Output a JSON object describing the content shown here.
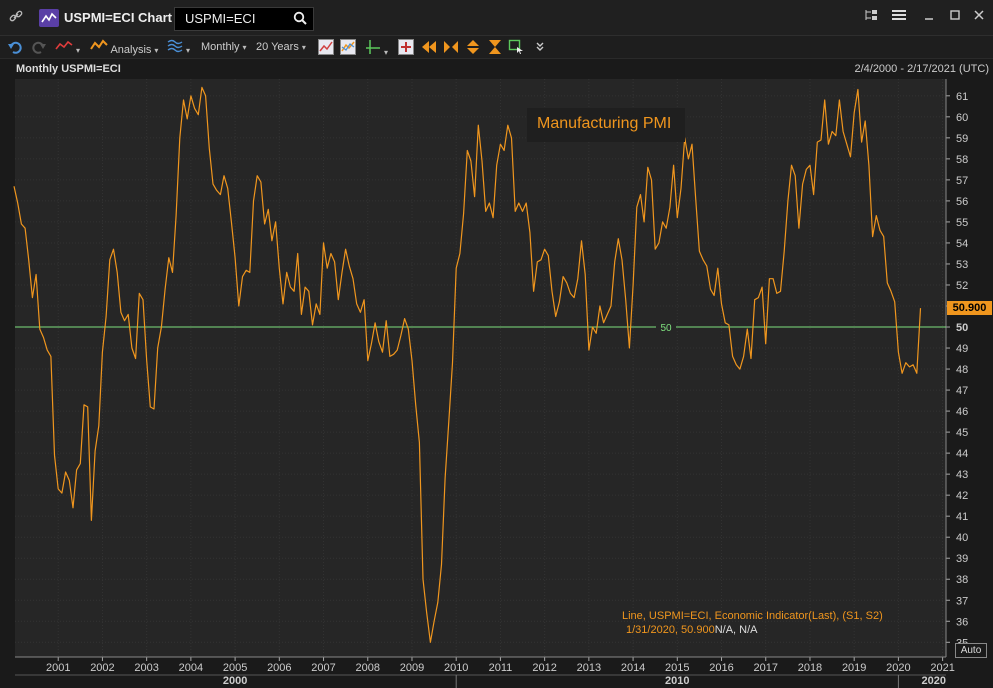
{
  "window": {
    "title": "USPMI=ECI Chart",
    "search_value": "USPMI=ECI"
  },
  "toolbar": {
    "analysis_label": "Analysis",
    "interval_label": "Monthly",
    "period_label": "20 Years"
  },
  "chart_header": {
    "title": "Monthly USPMI=ECI",
    "range": "2/4/2000 - 2/17/2021 (UTC)"
  },
  "annotation": "Manufacturing PMI",
  "legend": {
    "line1": "Line, USPMI=ECI, Economic Indicator(Last), (S1, S2)",
    "line2_value": "1/31/2020, 50.900",
    "line2_na": "N/A, N/A"
  },
  "last_value_badge": "50.900",
  "auto_button": "Auto",
  "colors": {
    "series": "#f0961e",
    "reference_line": "#7fe07f",
    "background": "#1a1a1a"
  },
  "chart_data": {
    "type": "line",
    "title": "Monthly USPMI=ECI",
    "series": [
      {
        "name": "USPMI=ECI",
        "x_start": "2000-01",
        "frequency": "monthly",
        "values": [
          56.7,
          55.9,
          54.9,
          54.7,
          53.2,
          51.4,
          52.5,
          49.9,
          49.5,
          48.9,
          48.6,
          43.9,
          42.3,
          42.1,
          43.1,
          42.7,
          41.4,
          43.2,
          43.5,
          46.3,
          46.2,
          40.8,
          44.1,
          45.3,
          48.8,
          50.5,
          53.2,
          53.7,
          52.6,
          50.7,
          50.3,
          50.6,
          49.0,
          48.5,
          51.6,
          51.3,
          48.4,
          46.2,
          46.1,
          49.0,
          50.0,
          51.8,
          53.3,
          52.6,
          55.3,
          59.0,
          60.8,
          59.9,
          61.0,
          60.4,
          60.1,
          61.4,
          61.0,
          58.5,
          56.8,
          56.5,
          56.3,
          57.2,
          56.6,
          55.0,
          53.3,
          51.0,
          52.4,
          52.7,
          52.6,
          56.0,
          57.2,
          56.9,
          54.9,
          55.6,
          54.1,
          55.0,
          52.8,
          51.1,
          52.6,
          51.9,
          51.7,
          53.5,
          50.6,
          51.9,
          51.7,
          50.1,
          51.1,
          50.6,
          54.0,
          52.8,
          53.5,
          53.1,
          51.3,
          52.6,
          53.7,
          52.9,
          52.3,
          51.1,
          50.7,
          51.3,
          48.4,
          49.2,
          50.2,
          49.3,
          48.8,
          50.3,
          48.6,
          48.7,
          48.9,
          49.6,
          50.4,
          49.9,
          48.4,
          46.3,
          44.5,
          38.0,
          36.4,
          35.0,
          36.0,
          36.9,
          38.7,
          42.8,
          45.5,
          48.3,
          52.8,
          53.5,
          55.4,
          58.4,
          57.9,
          56.2,
          59.6,
          57.9,
          55.5,
          55.9,
          55.2,
          57.7,
          58.7,
          58.4,
          59.6,
          59.0,
          55.5,
          55.9,
          55.5,
          55.9,
          54.5,
          51.7,
          53.1,
          53.2,
          53.7,
          53.4,
          51.7,
          50.5,
          51.2,
          52.4,
          52.1,
          51.6,
          51.4,
          52.3,
          54.1,
          52.5,
          48.9,
          50.0,
          49.7,
          51.0,
          50.2,
          50.6,
          51.0,
          53.1,
          54.2,
          53.2,
          51.3,
          49.0,
          52.0,
          55.7,
          56.3,
          55.0,
          57.6,
          57.0,
          53.7,
          54.0,
          55.0,
          54.7,
          55.7,
          57.7,
          55.2,
          56.6,
          59.0,
          58.0,
          58.7,
          56.1,
          53.6,
          53.2,
          52.9,
          51.8,
          51.5,
          52.8,
          51.1,
          50.2,
          50.1,
          48.6,
          48.2,
          48.0,
          48.6,
          49.9,
          48.5,
          51.3,
          51.4,
          51.9,
          49.2,
          52.3,
          52.3,
          51.6,
          51.7,
          53.6,
          56.0,
          57.7,
          57.2,
          54.7,
          56.8,
          57.5,
          57.7,
          56.3,
          58.8,
          58.9,
          60.8,
          58.7,
          59.3,
          59.1,
          60.8,
          59.3,
          58.7,
          58.1,
          60.2,
          61.3,
          58.8,
          59.8,
          57.7,
          54.3,
          55.3,
          54.6,
          54.3,
          52.1,
          51.7,
          51.2,
          48.8,
          47.8,
          48.3,
          48.1,
          48.2,
          47.8,
          50.9
        ]
      }
    ],
    "reference_line": {
      "value": 50,
      "label": "50"
    },
    "ylim": [
      34.3,
      61.8
    ],
    "yticks": [
      35,
      36,
      37,
      38,
      39,
      40,
      41,
      42,
      43,
      44,
      45,
      46,
      47,
      48,
      49,
      50,
      51,
      52,
      53,
      54,
      55,
      56,
      57,
      58,
      59,
      60,
      61
    ],
    "xticks": [
      "2001",
      "2002",
      "2003",
      "2004",
      "2005",
      "2006",
      "2007",
      "2008",
      "2009",
      "2010",
      "2011",
      "2012",
      "2013",
      "2014",
      "2015",
      "2016",
      "2017",
      "2018",
      "2019",
      "2020",
      "2021"
    ],
    "decade_labels": [
      "2000",
      "2010",
      "2020"
    ],
    "xlabel": "",
    "ylabel": "",
    "grid": true,
    "last_value": 50.9
  }
}
